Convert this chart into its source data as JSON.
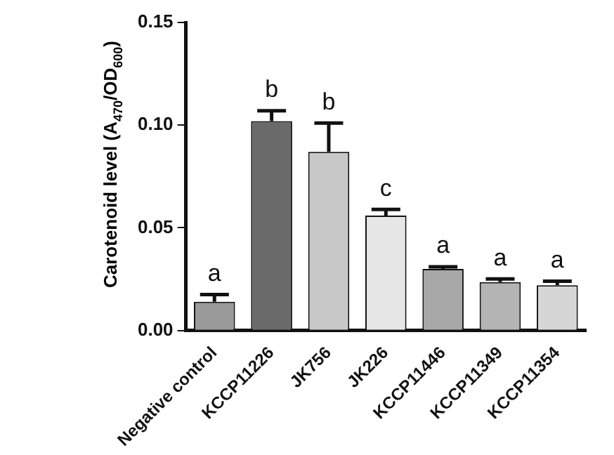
{
  "chart_data": {
    "type": "bar",
    "ylabel": "Carotenoid level (A$_{470}$/OD$_{600}$)",
    "categories": [
      "Negative control",
      "KCCP11226",
      "JK756",
      "JK226",
      "KCCP11446",
      "KCCP11349",
      "KCCP11354"
    ],
    "values": [
      0.014,
      0.102,
      0.087,
      0.056,
      0.03,
      0.0236,
      0.022
    ],
    "errors": [
      0.0035,
      0.005,
      0.014,
      0.003,
      0.001,
      0.0015,
      0.002
    ],
    "colors": [
      "#9a9a9a",
      "#6a6a6a",
      "#c8c8c8",
      "#e6e6e6",
      "#a8a8a8",
      "#b4b4b4",
      "#d6d6d6"
    ],
    "ylim": [
      0,
      0.15
    ],
    "yticks": [
      {
        "value": 0,
        "label": "0.00"
      },
      0.05,
      {
        "value": 0.1,
        "label": "0.10"
      },
      0.15
    ],
    "grid": false,
    "legend": false,
    "annotations": [
      {
        "text": "a",
        "x": "Negative control",
        "y": 0.0175
      },
      {
        "text": "b",
        "x": "KCCP11226",
        "y": 0.107
      },
      {
        "text": "b",
        "x": "JK756",
        "y": 0.101
      },
      {
        "text": "c",
        "x": "JK226",
        "y": 0.059
      },
      {
        "text": "a",
        "x": "KCCP11446",
        "y": 0.031
      },
      {
        "text": "a",
        "x": "KCCP11349",
        "y": 0.0251
      },
      {
        "text": "a",
        "x": "KCCP11354",
        "y": 0.024
      }
    ]
  }
}
